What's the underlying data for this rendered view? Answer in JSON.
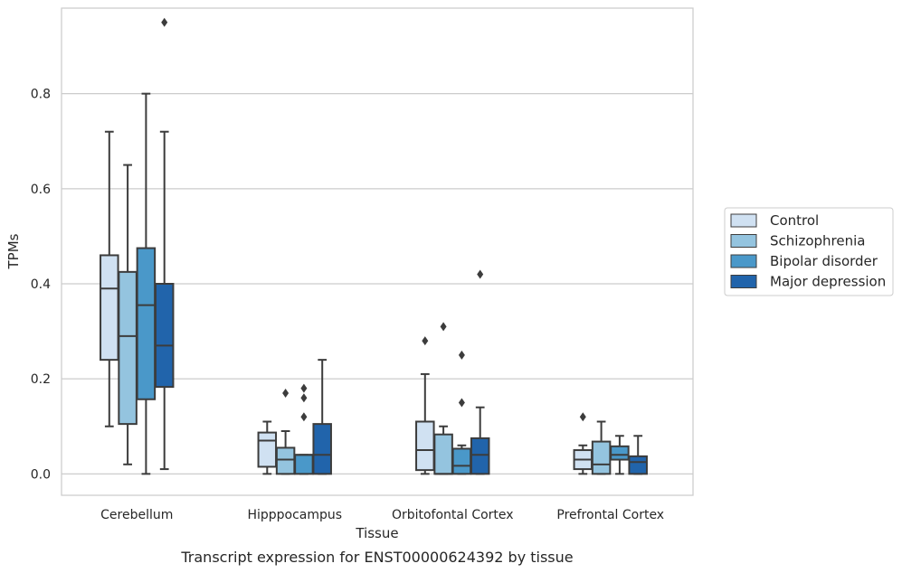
{
  "chart_data": {
    "type": "box",
    "xlabel": "Tissue",
    "ylabel": "TPMs",
    "caption": "Transcript expression for ENST00000624392 by tissue",
    "ylim": [
      -0.045,
      0.98
    ],
    "yticks": [
      "0.0",
      "0.2",
      "0.4",
      "0.6",
      "0.8"
    ],
    "grid": true,
    "legend_position": "right",
    "categories": [
      "Cerebellum",
      "Hipppocampus",
      "Orbitofontal Cortex",
      "Prefrontal Cortex"
    ],
    "series": [
      {
        "name": "Control",
        "color": "#d0e1f2",
        "boxes": [
          {
            "whisker_low": 0.1,
            "q1": 0.24,
            "median": 0.39,
            "q3": 0.46,
            "whisker_high": 0.72,
            "outliers": []
          },
          {
            "whisker_low": 0.0,
            "q1": 0.015,
            "median": 0.07,
            "q3": 0.087,
            "whisker_high": 0.11,
            "outliers": []
          },
          {
            "whisker_low": 0.0,
            "q1": 0.008,
            "median": 0.05,
            "q3": 0.11,
            "whisker_high": 0.21,
            "outliers": [
              0.28
            ]
          },
          {
            "whisker_low": 0.0,
            "q1": 0.01,
            "median": 0.03,
            "q3": 0.05,
            "whisker_high": 0.06,
            "outliers": [
              0.12
            ]
          }
        ]
      },
      {
        "name": "Schizophrenia",
        "color": "#94c4df",
        "boxes": [
          {
            "whisker_low": 0.02,
            "q1": 0.105,
            "median": 0.29,
            "q3": 0.425,
            "whisker_high": 0.65,
            "outliers": []
          },
          {
            "whisker_low": 0.0,
            "q1": 0.0,
            "median": 0.03,
            "q3": 0.055,
            "whisker_high": 0.09,
            "outliers": [
              0.17
            ]
          },
          {
            "whisker_low": 0.0,
            "q1": 0.0,
            "median": 0.0,
            "q3": 0.083,
            "whisker_high": 0.1,
            "outliers": [
              0.31
            ]
          },
          {
            "whisker_low": 0.0,
            "q1": 0.0,
            "median": 0.02,
            "q3": 0.068,
            "whisker_high": 0.11,
            "outliers": []
          }
        ]
      },
      {
        "name": "Bipolar disorder",
        "color": "#4a98c9",
        "boxes": [
          {
            "whisker_low": 0.0,
            "q1": 0.157,
            "median": 0.355,
            "q3": 0.475,
            "whisker_high": 0.8,
            "outliers": []
          },
          {
            "whisker_low": 0.0,
            "q1": 0.0,
            "median": 0.04,
            "q3": 0.04,
            "whisker_high": 0.04,
            "outliers": [
              0.12,
              0.16,
              0.18
            ]
          },
          {
            "whisker_low": 0.0,
            "q1": 0.0,
            "median": 0.017,
            "q3": 0.053,
            "whisker_high": 0.06,
            "outliers": [
              0.15,
              0.25
            ]
          },
          {
            "whisker_low": 0.0,
            "q1": 0.03,
            "median": 0.04,
            "q3": 0.058,
            "whisker_high": 0.08,
            "outliers": []
          }
        ]
      },
      {
        "name": "Major depression",
        "color": "#2164ab",
        "boxes": [
          {
            "whisker_low": 0.01,
            "q1": 0.183,
            "median": 0.27,
            "q3": 0.4,
            "whisker_high": 0.72,
            "outliers": [
              0.95
            ]
          },
          {
            "whisker_low": 0.0,
            "q1": 0.0,
            "median": 0.04,
            "q3": 0.105,
            "whisker_high": 0.24,
            "outliers": []
          },
          {
            "whisker_low": 0.0,
            "q1": 0.0,
            "median": 0.04,
            "q3": 0.075,
            "whisker_high": 0.14,
            "outliers": [
              0.42
            ]
          },
          {
            "whisker_low": 0.0,
            "q1": 0.0,
            "median": 0.025,
            "q3": 0.037,
            "whisker_high": 0.08,
            "outliers": []
          }
        ]
      }
    ]
  }
}
